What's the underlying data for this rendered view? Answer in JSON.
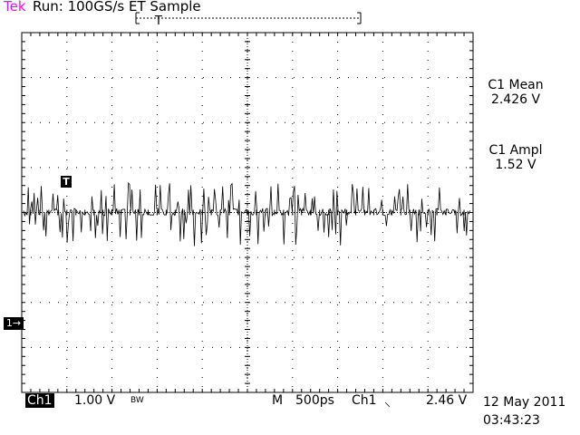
{
  "header": {
    "brand": "Tek",
    "run_status": "Run: 100GS/s ET Sample"
  },
  "measurements": [
    {
      "label": "C1 Mean",
      "value": "2.426 V"
    },
    {
      "label": "C1 Ampl",
      "value": "1.52 V"
    }
  ],
  "channel": {
    "name": "Ch1",
    "scale": "1.00 V",
    "bandwidth": "BW",
    "marker": "1→"
  },
  "timebase": {
    "prefix": "M",
    "scale": "500ps",
    "trigger_source": "Ch1",
    "trigger_slope_icon": "falling-edge-icon",
    "trigger_slope_glyph": "⸜",
    "trigger_level": "2.46 V"
  },
  "trigger_marker": "T",
  "record_marker": "T",
  "datetime": {
    "date": "12 May 2011",
    "time": "03:43:23"
  },
  "colors": {
    "brand": "#ff00ff",
    "trace": "#000000",
    "grid": "#000000"
  }
}
